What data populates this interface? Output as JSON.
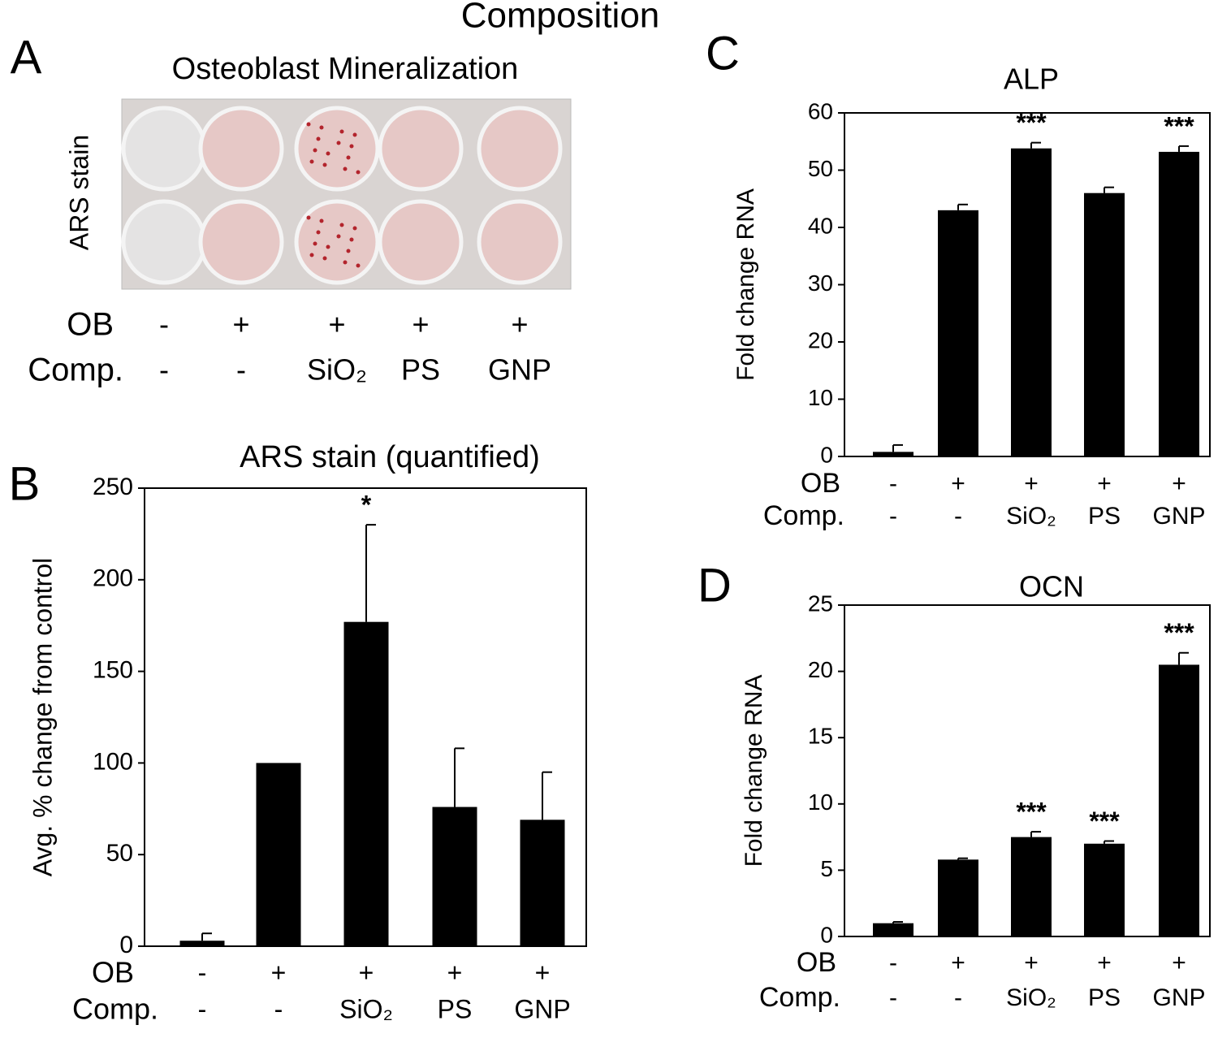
{
  "title": "Composition",
  "panel_a": {
    "label": "A",
    "title": "Osteoblast Mineralization",
    "ylabel": "ARS stain",
    "conditions": [
      {
        "name": "OB",
        "values": [
          "-",
          "+",
          "+",
          "+",
          "+"
        ]
      },
      {
        "name": "Comp.",
        "values": [
          "-",
          "-",
          "SiO₂",
          "PS",
          "GNP"
        ]
      }
    ]
  },
  "chart_data": [
    {
      "type": "bar",
      "panel_label": "B",
      "title": "ARS stain (quantified)",
      "ylabel": "Avg. % change from control",
      "ylim": [
        0,
        250
      ],
      "yticks": [
        0,
        50,
        100,
        150,
        200,
        250
      ],
      "color": "#000000",
      "values": [
        3,
        100,
        177,
        76,
        69
      ],
      "errors": [
        4,
        0,
        53,
        32,
        26
      ],
      "significance": [
        null,
        null,
        "*",
        null,
        null
      ],
      "conditions": [
        {
          "name": "OB",
          "values": [
            "-",
            "+",
            "+",
            "+",
            "+"
          ]
        },
        {
          "name": "Comp.",
          "values": [
            "-",
            "-",
            "SiO₂",
            "PS",
            "GNP"
          ]
        }
      ]
    },
    {
      "type": "bar",
      "panel_label": "C",
      "title": "ALP",
      "ylabel": "Fold change RNA",
      "ylim": [
        0,
        60
      ],
      "yticks": [
        0,
        10,
        20,
        30,
        40,
        50,
        60
      ],
      "color": "#000000",
      "values": [
        0.8,
        43,
        53.8,
        46,
        53.2
      ],
      "errors": [
        1.2,
        1,
        1,
        1,
        1
      ],
      "significance": [
        null,
        null,
        "***",
        null,
        "***"
      ],
      "conditions": [
        {
          "name": "OB",
          "values": [
            "-",
            "+",
            "+",
            "+",
            "+"
          ]
        },
        {
          "name": "Comp.",
          "values": [
            "-",
            "-",
            "SiO₂",
            "PS",
            "GNP"
          ]
        }
      ]
    },
    {
      "type": "bar",
      "panel_label": "D",
      "title": "OCN",
      "ylabel": "Fold change RNA",
      "ylim": [
        0,
        25
      ],
      "yticks": [
        0,
        5,
        10,
        15,
        20,
        25
      ],
      "color": "#000000",
      "values": [
        1,
        5.8,
        7.5,
        7.0,
        20.5
      ],
      "errors": [
        0.1,
        0.1,
        0.4,
        0.2,
        0.9
      ],
      "significance": [
        null,
        null,
        "***",
        "***",
        "***"
      ],
      "conditions": [
        {
          "name": "OB",
          "values": [
            "-",
            "+",
            "+",
            "+",
            "+"
          ]
        },
        {
          "name": "Comp.",
          "values": [
            "-",
            "-",
            "SiO₂",
            "PS",
            "GNP"
          ]
        }
      ]
    }
  ]
}
